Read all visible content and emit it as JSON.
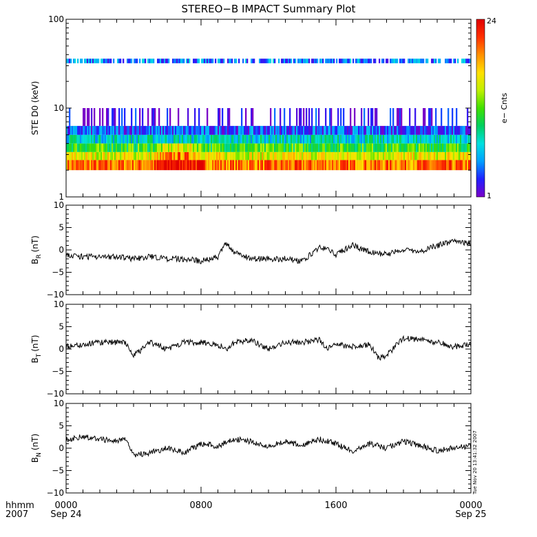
{
  "title": "STEREO−B IMPACT Summary Plot",
  "timestamp": "Tue Nov 20 13:41:32 2007",
  "time_axis": {
    "corner_labels": [
      "hhmm",
      "2007"
    ],
    "ticks": [
      {
        "hour": 0,
        "label": "0000",
        "sublabel": "Sep 24"
      },
      {
        "hour": 8,
        "label": "0800",
        "sublabel": ""
      },
      {
        "hour": 16,
        "label": "1600",
        "sublabel": ""
      },
      {
        "hour": 24,
        "label": "0000",
        "sublabel": "Sep 25"
      }
    ],
    "range_hours": [
      0,
      24
    ]
  },
  "colorbar": {
    "label": "e− Cnts",
    "min_label": "1",
    "max_label": "24",
    "colors": [
      "#7a00c8",
      "#2020ff",
      "#00a0ff",
      "#00e0e0",
      "#00d060",
      "#40e000",
      "#c0f000",
      "#ffe000",
      "#ff9000",
      "#ff3000",
      "#e00000"
    ]
  },
  "chart_data": [
    {
      "type": "heatmap",
      "name": "STE D0",
      "ylabel": "STE D0 (keV)",
      "yscale": "log",
      "ylim": [
        1,
        100
      ],
      "ytick_labels": [
        "1",
        "10",
        "100"
      ],
      "zlim": [
        1,
        24
      ],
      "description_rows": [
        {
          "energy_keV": [
            2.0,
            2.6
          ],
          "counts_typical": 20
        },
        {
          "energy_keV": [
            2.6,
            3.2
          ],
          "counts_typical": 16
        },
        {
          "energy_keV": [
            3.2,
            4.0
          ],
          "counts_typical": 12
        },
        {
          "energy_keV": [
            4.0,
            5.0
          ],
          "counts_typical": 8
        },
        {
          "energy_keV": [
            5.0,
            6.3
          ],
          "counts_typical": 4
        },
        {
          "energy_keV": [
            6.3,
            10.0
          ],
          "counts_typical": 2
        },
        {
          "energy_keV": [
            32.0,
            36.0
          ],
          "counts_typical": 5
        }
      ]
    },
    {
      "type": "line",
      "name": "BR",
      "ylabel_main": "B",
      "ylabel_sub": "R",
      "ylabel_unit": "(nT)",
      "ylim": [
        -10,
        10
      ],
      "ytick_labels": [
        "−10",
        "−5",
        "0",
        "5",
        "10"
      ],
      "x": [
        0,
        1,
        2,
        3,
        4,
        5,
        6,
        7,
        8,
        9,
        9.5,
        10,
        11,
        12,
        13,
        14,
        15,
        15.5,
        16,
        17,
        18,
        19,
        20,
        21,
        22,
        22.5,
        23,
        24
      ],
      "y": [
        -1,
        -1.5,
        -1.5,
        -1.5,
        -2,
        -1.5,
        -2,
        -2,
        -2.5,
        -1.5,
        1.5,
        -0.5,
        -2,
        -2,
        -2,
        -2.5,
        0.5,
        0.5,
        -1,
        1,
        -0.5,
        -1,
        0,
        -0.5,
        1,
        1.5,
        2,
        1.5
      ]
    },
    {
      "type": "line",
      "name": "BT",
      "ylabel_main": "B",
      "ylabel_sub": "T",
      "ylabel_unit": "(nT)",
      "ylim": [
        -10,
        10
      ],
      "ytick_labels": [
        "−10",
        "−5",
        "0",
        "5",
        "10"
      ],
      "x": [
        0,
        1,
        2,
        3,
        3.5,
        4,
        5,
        6,
        7,
        8,
        9,
        9.5,
        10,
        11,
        12,
        13,
        14,
        15,
        15.5,
        16,
        17,
        18,
        18.5,
        19,
        20,
        21,
        22,
        23,
        24
      ],
      "y": [
        0.5,
        1,
        1.5,
        1.5,
        1.5,
        -1.5,
        1.5,
        0,
        1.5,
        1.5,
        1,
        0,
        1.5,
        2,
        0,
        1.5,
        1.5,
        2,
        0,
        1,
        0.5,
        1,
        -2,
        -1.5,
        2.5,
        2,
        1.5,
        0.5,
        1
      ]
    },
    {
      "type": "line",
      "name": "BN",
      "ylabel_main": "B",
      "ylabel_sub": "N",
      "ylabel_unit": "(nT)",
      "ylim": [
        -10,
        10
      ],
      "ytick_labels": [
        "−10",
        "−5",
        "0",
        "5",
        "10"
      ],
      "x": [
        0,
        1,
        2,
        3,
        3.5,
        4,
        5,
        6,
        7,
        8,
        9,
        10,
        11,
        12,
        13,
        14,
        15,
        16,
        17,
        18,
        19,
        20,
        21,
        22,
        23,
        24
      ],
      "y": [
        2,
        2.5,
        2,
        1.5,
        2,
        -1.5,
        -1,
        0,
        -1,
        1,
        0.5,
        2,
        1.5,
        0.5,
        1.5,
        0.5,
        2,
        1,
        -0.5,
        1,
        0,
        1.5,
        0.5,
        -0.5,
        0,
        0.5
      ]
    }
  ]
}
